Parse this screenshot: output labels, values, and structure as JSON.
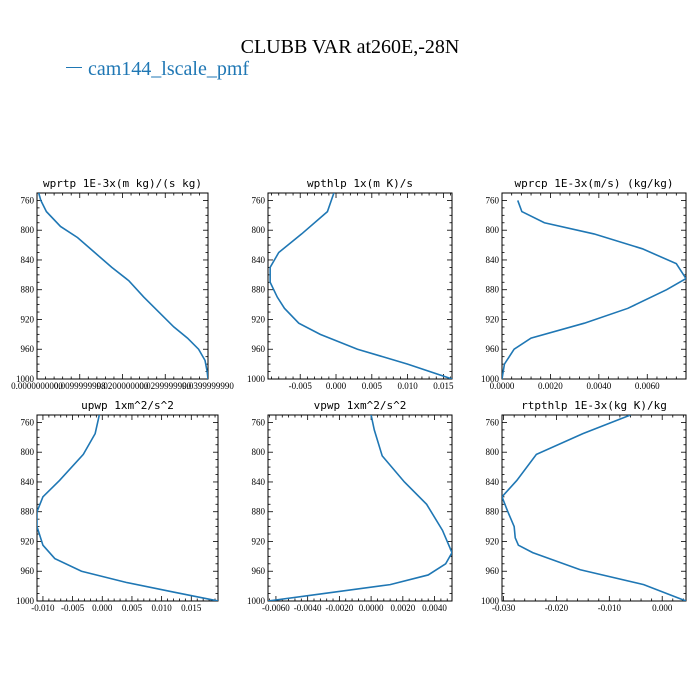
{
  "title": "CLUBB VAR at260E,-28N",
  "legend": {
    "label": "cam144_lscale_pmf",
    "color": "#1f77b4"
  },
  "chart_data": [
    {
      "type": "line",
      "title": "wprtp  1E-3x(m kg)/(s kg)",
      "xlim": [
        0.0,
        0.04
      ],
      "ylim": [
        1000,
        750
      ],
      "yticks": [
        760,
        800,
        840,
        880,
        920,
        960,
        1000
      ],
      "xticks": [
        0.0,
        0.01,
        0.02,
        0.03,
        0.04
      ],
      "xtick_labels": [
        "0.0000000000",
        "0.0099999998",
        "0.0200000000",
        "0.0299999990",
        "0.0399999990"
      ],
      "series": [
        {
          "x": [
            0.0004,
            0.0009,
            0.0022,
            0.0055,
            0.0095,
            0.0135,
            0.0175,
            0.0215,
            0.025,
            0.0285,
            0.032,
            0.0352,
            0.0378,
            0.0393,
            0.0398,
            0.04
          ],
          "y": [
            750,
            760,
            775,
            795,
            810,
            830,
            850,
            868,
            890,
            910,
            930,
            945,
            960,
            975,
            990,
            1000
          ]
        }
      ]
    },
    {
      "type": "line",
      "title": "wpthlp  1x(m K)/s",
      "xlim": [
        -0.0095,
        0.0162
      ],
      "ylim": [
        1000,
        750
      ],
      "yticks": [
        760,
        800,
        840,
        880,
        920,
        960,
        1000
      ],
      "xticks": [
        -0.005,
        0.0,
        0.005,
        0.01,
        0.015
      ],
      "xtick_labels": [
        "-0.005",
        "0.000",
        "0.005",
        "0.010",
        "0.015"
      ],
      "series": [
        {
          "x": [
            -0.0003,
            -0.0012,
            -0.0048,
            -0.008,
            -0.0092,
            -0.0092,
            -0.0082,
            -0.0072,
            -0.0052,
            -0.0022,
            0.003,
            0.01,
            0.0162
          ],
          "y": [
            750,
            775,
            805,
            830,
            850,
            870,
            890,
            905,
            925,
            940,
            960,
            980,
            1000
          ]
        }
      ]
    },
    {
      "type": "line",
      "title": "wprcp  1E-3x(m/s) (kg/kg)",
      "xlim": [
        0.0,
        0.0076
      ],
      "ylim": [
        1000,
        750
      ],
      "yticks": [
        760,
        800,
        840,
        880,
        920,
        960,
        1000
      ],
      "xticks": [
        0.0,
        0.002,
        0.004,
        0.006
      ],
      "xtick_labels": [
        "0.0000",
        "0.0020",
        "0.0040",
        "0.0060"
      ],
      "series": [
        {
          "x": [
            0.00065,
            0.00082,
            0.00175,
            0.0038,
            0.0058,
            0.0072,
            0.0076,
            0.0068,
            0.0052,
            0.0034,
            0.0012,
            0.0005,
            0.0001,
            0.0
          ],
          "y": [
            760,
            775,
            790,
            805,
            825,
            845,
            865,
            880,
            905,
            925,
            945,
            960,
            980,
            1000
          ]
        }
      ]
    },
    {
      "type": "line",
      "title": "upwp  1xm^2/s^2",
      "xlim": [
        -0.011,
        0.0195
      ],
      "ylim": [
        1000,
        750
      ],
      "yticks": [
        760,
        800,
        840,
        880,
        920,
        960,
        1000
      ],
      "xticks": [
        -0.01,
        -0.005,
        0.0,
        0.005,
        0.01,
        0.015
      ],
      "xtick_labels": [
        "-0.010",
        "-0.005",
        "0.000",
        "0.005",
        "0.010",
        "0.015"
      ],
      "series": [
        {
          "x": [
            -0.0005,
            -0.0012,
            -0.0032,
            -0.0072,
            -0.01,
            -0.011,
            -0.011,
            -0.01,
            -0.008,
            -0.0035,
            0.004,
            0.012,
            0.0195
          ],
          "y": [
            750,
            775,
            803,
            838,
            860,
            880,
            900,
            925,
            943,
            960,
            975,
            988,
            1000
          ]
        }
      ]
    },
    {
      "type": "line",
      "title": "vpwp  1xm^2/s^2",
      "xlim": [
        -0.0065,
        0.0051
      ],
      "ylim": [
        1000,
        750
      ],
      "yticks": [
        760,
        800,
        840,
        880,
        920,
        960,
        1000
      ],
      "xticks": [
        -0.006,
        -0.004,
        -0.002,
        0.0,
        0.002,
        0.004
      ],
      "xtick_labels": [
        "-0.0060",
        "-0.0040",
        "-0.0020",
        "0.0000",
        "0.0020",
        "0.0040"
      ],
      "series": [
        {
          "x": [
            0.0,
            0.0002,
            0.0007,
            0.0021,
            0.0035,
            0.0045,
            0.0051,
            0.0047,
            0.0036,
            0.0012,
            -0.003,
            -0.0065
          ],
          "y": [
            750,
            770,
            805,
            840,
            870,
            905,
            935,
            950,
            965,
            978,
            990,
            1000
          ]
        }
      ]
    },
    {
      "type": "line",
      "title": "rtpthlp  1E-3x(kg K)/kg",
      "xlim": [
        -0.0303,
        0.0045
      ],
      "ylim": [
        1000,
        750
      ],
      "yticks": [
        760,
        800,
        840,
        880,
        920,
        960,
        1000
      ],
      "xticks": [
        -0.03,
        -0.02,
        -0.01,
        0.0
      ],
      "xtick_labels": [
        "-0.030",
        "-0.020",
        "-0.010",
        "0.000"
      ],
      "series": [
        {
          "x": [
            -0.006,
            -0.015,
            -0.0238,
            -0.0275,
            -0.0303,
            -0.0292,
            -0.028,
            -0.0278,
            -0.0272,
            -0.0245,
            -0.0155,
            -0.0035,
            0.0045
          ],
          "y": [
            750,
            775,
            803,
            838,
            860,
            880,
            900,
            915,
            925,
            935,
            958,
            978,
            1000
          ]
        }
      ]
    }
  ]
}
